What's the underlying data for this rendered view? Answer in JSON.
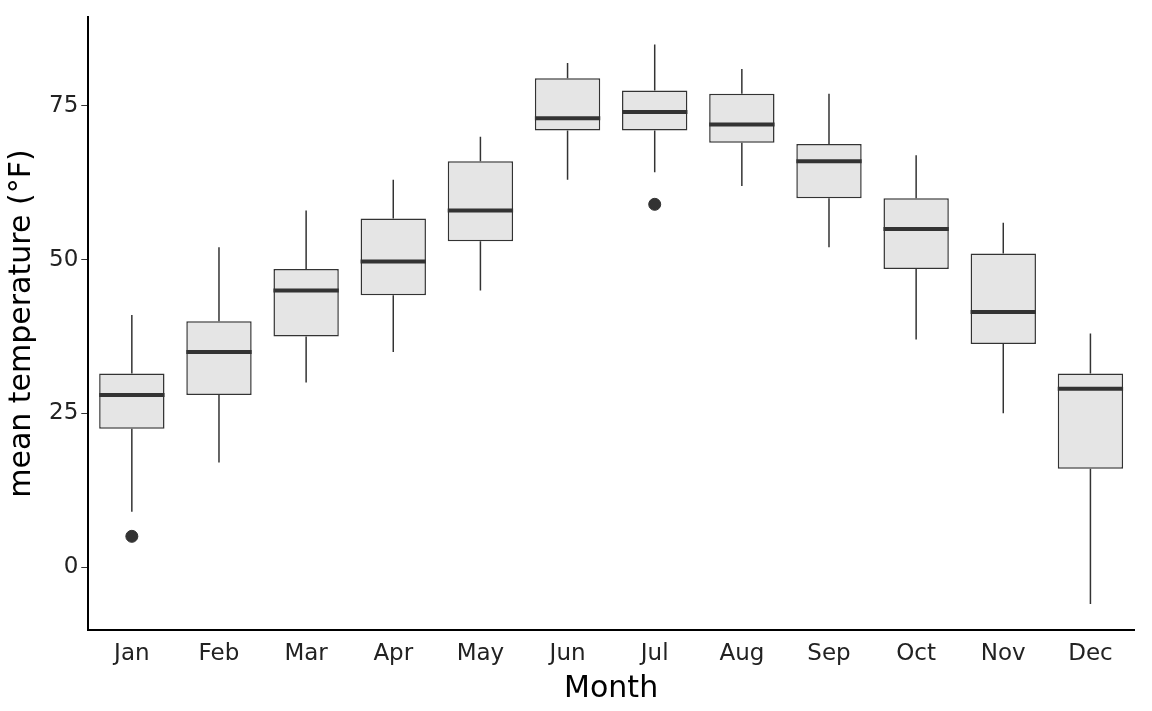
{
  "chart_data": {
    "type": "box",
    "x_label": "Month",
    "y_label": "mean temperature (°F)",
    "categories": [
      "Jan",
      "Feb",
      "Mar",
      "Apr",
      "May",
      "Jun",
      "Jul",
      "Aug",
      "Sep",
      "Oct",
      "Nov",
      "Dec"
    ],
    "stats": [
      {
        "min": 9,
        "q1": 22.5,
        "median": 28,
        "q3": 31.5,
        "max": 41,
        "outliers": [
          5
        ]
      },
      {
        "min": 17,
        "q1": 28,
        "median": 35,
        "q3": 40,
        "max": 52,
        "outliers": []
      },
      {
        "min": 30,
        "q1": 37.5,
        "median": 45,
        "q3": 48.5,
        "max": 58,
        "outliers": []
      },
      {
        "min": 35,
        "q1": 44.2,
        "median": 49.7,
        "q3": 56.7,
        "max": 63,
        "outliers": []
      },
      {
        "min": 45,
        "q1": 53,
        "median": 58,
        "q3": 66,
        "max": 70,
        "outliers": []
      },
      {
        "min": 63,
        "q1": 71,
        "median": 73,
        "q3": 79.5,
        "max": 82,
        "outliers": []
      },
      {
        "min": 64.2,
        "q1": 71,
        "median": 74,
        "q3": 77.5,
        "max": 85,
        "outliers": [
          59
        ]
      },
      {
        "min": 62,
        "q1": 69,
        "median": 72,
        "q3": 77,
        "max": 81,
        "outliers": []
      },
      {
        "min": 52,
        "q1": 60,
        "median": 66,
        "q3": 68.8,
        "max": 77,
        "outliers": []
      },
      {
        "min": 37,
        "q1": 48.5,
        "median": 55,
        "q3": 60,
        "max": 67,
        "outliers": []
      },
      {
        "min": 25,
        "q1": 36.3,
        "median": 41.5,
        "q3": 51,
        "max": 56,
        "outliers": []
      },
      {
        "min": -6,
        "q1": 16,
        "median": 29,
        "q3": 31.5,
        "max": 38,
        "outliers": []
      }
    ],
    "color": "#e5e5e5",
    "ylim": [
      -10.3,
      89.5
    ],
    "yticks": [
      0,
      25,
      50,
      75
    ],
    "grid": false
  }
}
